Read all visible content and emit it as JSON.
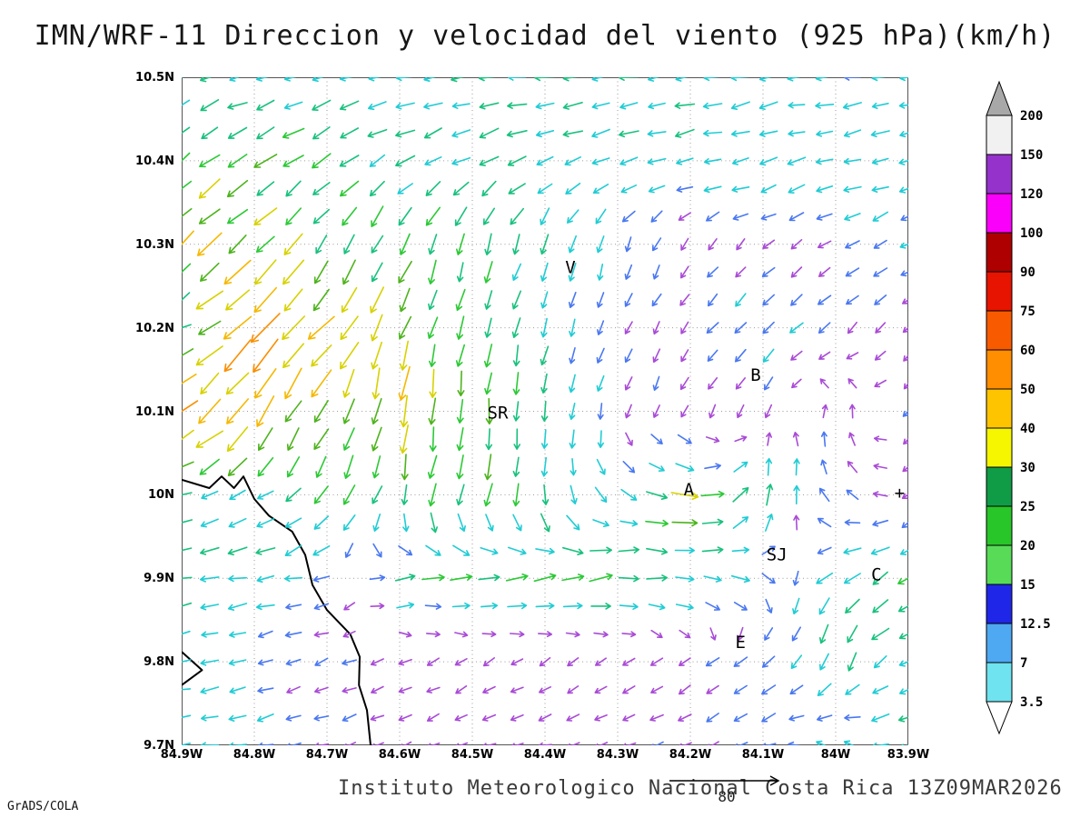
{
  "title": "IMN/WRF-11 Direccion y velocidad del viento (925 hPa)(km/h)",
  "footer": {
    "credit": "Instituto Meteorologico Nacional Costa Rica 13Z09MAR2026",
    "engine": "GrADS/COLA"
  },
  "axes": {
    "x_ticks": [
      84.9,
      84.8,
      84.7,
      84.6,
      84.5,
      84.4,
      84.3,
      84.2,
      84.1,
      84.0,
      83.9
    ],
    "x_labels": [
      "84.9W",
      "84.8W",
      "84.7W",
      "84.6W",
      "84.5W",
      "84.4W",
      "84.3W",
      "84.2W",
      "84.1W",
      "84W",
      "83.9W"
    ],
    "y_ticks": [
      10.5,
      10.4,
      10.3,
      10.2,
      10.1,
      10.0,
      9.9,
      9.8,
      9.7
    ],
    "y_labels": [
      "10.5N",
      "10.4N",
      "10.3N",
      "10.2N",
      "10.1N",
      "10N",
      "9.9N",
      "9.8N",
      "9.7N"
    ]
  },
  "chart_data": {
    "type": "quiver",
    "title": "IMN/WRF-11 Direccion y velocidad del viento (925 hPa)(km/h)",
    "units": "km/h",
    "level": "925 hPa",
    "valid_time": "13Z09MAR2026",
    "grid": "dotted",
    "x_range_deg_w": [
      84.9,
      83.9
    ],
    "y_range_deg_n": [
      9.7,
      10.5
    ],
    "reference_vector": {
      "label": "80",
      "value_kmh": 80
    },
    "wind_grid": {
      "lons_w": [
        84.9,
        84.8,
        84.7,
        84.6,
        84.5,
        84.4,
        84.3,
        84.2,
        84.1,
        84.0,
        83.9
      ],
      "lats_n": [
        10.5,
        10.4,
        10.3,
        10.2,
        10.1,
        10.0,
        9.9,
        9.8,
        9.7
      ],
      "uv_kmh": [
        [
          [
            -12,
            -3
          ],
          [
            -12,
            -3
          ],
          [
            -13,
            -3
          ],
          [
            -13,
            -2
          ],
          [
            -14,
            -2
          ],
          [
            -13,
            -2
          ],
          [
            -12,
            -2
          ],
          [
            -12,
            -2
          ],
          [
            -12,
            -2
          ],
          [
            -11,
            -2
          ],
          [
            -10,
            -2
          ]
        ],
        [
          [
            -18,
            -14
          ],
          [
            -20,
            -12
          ],
          [
            -15,
            -10
          ],
          [
            -14,
            -8
          ],
          [
            -14,
            -6
          ],
          [
            -14,
            -5
          ],
          [
            -13,
            -4
          ],
          [
            -13,
            -3
          ],
          [
            -12,
            -3
          ],
          [
            -12,
            -3
          ],
          [
            -11,
            -3
          ]
        ],
        [
          [
            -26,
            -26
          ],
          [
            -22,
            -22
          ],
          [
            -12,
            -18
          ],
          [
            -8,
            -18
          ],
          [
            -6,
            -16
          ],
          [
            -4,
            -14
          ],
          [
            -3,
            -8
          ],
          [
            -2,
            -3
          ],
          [
            -3,
            -3
          ],
          [
            -6,
            -4
          ],
          [
            -8,
            -4
          ]
        ],
        [
          [
            -12,
            -5
          ],
          [
            -40,
            -40
          ],
          [
            -26,
            -30
          ],
          [
            -10,
            -25
          ],
          [
            -5,
            -18
          ],
          [
            -3,
            -12
          ],
          [
            -2,
            -5
          ],
          [
            -3,
            -4
          ],
          [
            -8,
            -8
          ],
          [
            -4,
            -4
          ],
          [
            -3,
            -3
          ]
        ],
        [
          [
            -40,
            -30
          ],
          [
            -20,
            -30
          ],
          [
            -12,
            -26
          ],
          [
            -5,
            -40
          ],
          [
            -3,
            -25
          ],
          [
            -2,
            -15
          ],
          [
            -2,
            -6
          ],
          [
            -2,
            -4
          ],
          [
            -2,
            -5
          ],
          [
            1,
            6
          ],
          [
            -3,
            -4
          ]
        ],
        [
          [
            -15,
            -5
          ],
          [
            -12,
            -6
          ],
          [
            -10,
            -15
          ],
          [
            -6,
            -20
          ],
          [
            -4,
            -22
          ],
          [
            0,
            -18
          ],
          [
            8,
            -6
          ],
          [
            25,
            -3
          ],
          [
            5,
            18
          ],
          [
            -6,
            6
          ],
          [
            -4,
            -3
          ]
        ],
        [
          [
            -14,
            -2
          ],
          [
            -13,
            -2
          ],
          [
            -8,
            -2
          ],
          [
            16,
            2
          ],
          [
            18,
            2
          ],
          [
            20,
            3
          ],
          [
            20,
            2
          ],
          [
            16,
            -2
          ],
          [
            8,
            -4
          ],
          [
            -12,
            -8
          ],
          [
            -16,
            -10
          ]
        ],
        [
          [
            -12,
            -3
          ],
          [
            -8,
            -3
          ],
          [
            -5,
            -2
          ],
          [
            -4,
            -2
          ],
          [
            -3,
            -2
          ],
          [
            -3,
            -2
          ],
          [
            -3,
            -2
          ],
          [
            -4,
            -3
          ],
          [
            -8,
            -5
          ],
          [
            -4,
            -15
          ],
          [
            -12,
            -5
          ]
        ],
        [
          [
            -12,
            -2
          ],
          [
            -10,
            -2
          ],
          [
            -6,
            -2
          ],
          [
            -4,
            -2
          ],
          [
            -4,
            -1
          ],
          [
            -4,
            -1
          ],
          [
            -4,
            -2
          ],
          [
            -5,
            -2
          ],
          [
            -6,
            -3
          ],
          [
            -10,
            6
          ],
          [
            -14,
            -4
          ]
        ]
      ]
    },
    "stations": [
      {
        "label": "V",
        "lon_w": 84.365,
        "lat_n": 10.272
      },
      {
        "label": "B",
        "lon_w": 84.11,
        "lat_n": 10.143
      },
      {
        "label": "SR",
        "lon_w": 84.465,
        "lat_n": 10.098
      },
      {
        "label": "A",
        "lon_w": 84.202,
        "lat_n": 10.006
      },
      {
        "label": "SJ",
        "lon_w": 84.081,
        "lat_n": 9.928
      },
      {
        "label": "C",
        "lon_w": 83.944,
        "lat_n": 9.904
      },
      {
        "label": "E",
        "lon_w": 84.131,
        "lat_n": 9.823
      },
      {
        "label": "+",
        "lon_w": 83.912,
        "lat_n": 10.002
      }
    ],
    "coastlines": [
      [
        [
          84.9,
          10.018
        ],
        [
          84.862,
          10.008
        ],
        [
          84.845,
          10.022
        ],
        [
          84.828,
          10.008
        ],
        [
          84.815,
          10.022
        ],
        [
          84.8,
          9.995
        ],
        [
          84.78,
          9.975
        ],
        [
          84.748,
          9.956
        ],
        [
          84.73,
          9.928
        ],
        [
          84.72,
          9.892
        ],
        [
          84.7,
          9.862
        ],
        [
          84.668,
          9.833
        ],
        [
          84.655,
          9.806
        ],
        [
          84.656,
          9.772
        ],
        [
          84.645,
          9.742
        ],
        [
          84.64,
          9.7
        ]
      ],
      [
        [
          84.9,
          9.812
        ],
        [
          84.872,
          9.79
        ],
        [
          84.9,
          9.772
        ]
      ]
    ],
    "colorbar": {
      "levels": [
        "3.5",
        "7",
        "12.5",
        "15",
        "20",
        "25",
        "30",
        "40",
        "50",
        "60",
        "75",
        "90",
        "100",
        "120",
        "150",
        "200"
      ],
      "band_colors_bottom_up": [
        "#6fe3ef",
        "#4fa8f2",
        "#2026e8",
        "#58dc58",
        "#28c628",
        "#109c46",
        "#f6f600",
        "#ffc400",
        "#ff8e00",
        "#f85a00",
        "#e61400",
        "#ae0000",
        "#fa00fa",
        "#9632cc",
        "#f1f1f1"
      ],
      "above_color": "#a8a8a8",
      "below_color": "#ffffff"
    },
    "arrow_speed_colors": [
      {
        "max": 6,
        "color": "#a94bd6"
      },
      {
        "max": 9.5,
        "color": "#4a78f0"
      },
      {
        "max": 15,
        "color": "#21ccd4"
      },
      {
        "max": 20,
        "color": "#19c17e"
      },
      {
        "max": 25,
        "color": "#2cc936"
      },
      {
        "max": 30,
        "color": "#4db31c"
      },
      {
        "max": 40,
        "color": "#d7d200"
      },
      {
        "max": 50,
        "color": "#f5b800"
      },
      {
        "max": 60,
        "color": "#fa8e00"
      },
      {
        "max": 75,
        "color": "#f75708"
      },
      {
        "max": 1000,
        "color": "#e62020"
      }
    ]
  }
}
